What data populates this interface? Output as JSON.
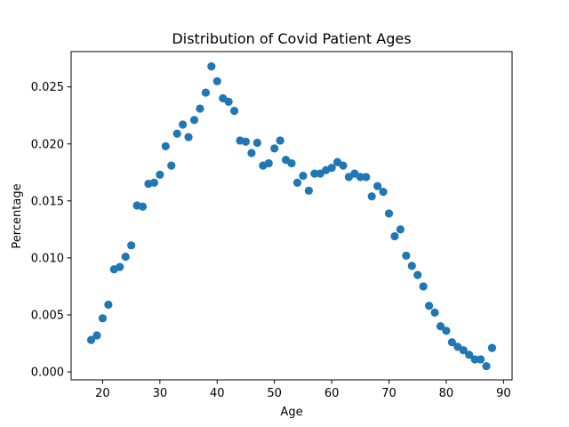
{
  "chart_data": {
    "type": "scatter",
    "title": "Distribution of Covid Patient Ages",
    "xlabel": "Age",
    "ylabel": "Percentage",
    "xlim": [
      14.5,
      91.5
    ],
    "ylim": [
      -0.0007,
      0.0281
    ],
    "xticks": [
      20,
      30,
      40,
      50,
      60,
      70,
      80,
      90
    ],
    "xtick_labels": [
      "20",
      "30",
      "40",
      "50",
      "60",
      "70",
      "80",
      "90"
    ],
    "yticks": [
      0.0,
      0.005,
      0.01,
      0.015,
      0.02,
      0.025
    ],
    "ytick_labels": [
      "0.000",
      "0.005",
      "0.010",
      "0.015",
      "0.020",
      "0.025"
    ],
    "grid": false,
    "marker_color": "#1f77b4",
    "x": [
      18,
      19,
      20,
      21,
      22,
      23,
      24,
      25,
      26,
      27,
      28,
      29,
      30,
      31,
      32,
      33,
      34,
      35,
      36,
      37,
      38,
      39,
      40,
      41,
      42,
      43,
      44,
      45,
      46,
      47,
      48,
      49,
      50,
      51,
      52,
      53,
      54,
      55,
      56,
      57,
      58,
      59,
      60,
      61,
      62,
      63,
      64,
      65,
      66,
      67,
      68,
      69,
      70,
      71,
      72,
      73,
      74,
      75,
      76,
      77,
      78,
      79,
      80,
      81,
      82,
      83,
      84,
      85,
      86,
      87,
      88
    ],
    "y": [
      0.0028,
      0.0032,
      0.0047,
      0.0059,
      0.009,
      0.0092,
      0.0101,
      0.0111,
      0.0146,
      0.0145,
      0.0165,
      0.0166,
      0.0173,
      0.0198,
      0.0181,
      0.0209,
      0.0217,
      0.0206,
      0.0221,
      0.0231,
      0.0245,
      0.0268,
      0.0255,
      0.024,
      0.0237,
      0.0229,
      0.0203,
      0.0202,
      0.0192,
      0.0201,
      0.0181,
      0.0183,
      0.0196,
      0.0203,
      0.0186,
      0.0183,
      0.0166,
      0.0172,
      0.0159,
      0.0174,
      0.0174,
      0.0177,
      0.0179,
      0.0184,
      0.0181,
      0.0171,
      0.0174,
      0.0171,
      0.0171,
      0.0154,
      0.0163,
      0.0158,
      0.0139,
      0.0119,
      0.0125,
      0.0102,
      0.0093,
      0.0085,
      0.0075,
      0.0058,
      0.0052,
      0.004,
      0.0036,
      0.0026,
      0.0022,
      0.0019,
      0.0015,
      0.0011,
      0.0011,
      0.0005,
      0.0021
    ]
  }
}
